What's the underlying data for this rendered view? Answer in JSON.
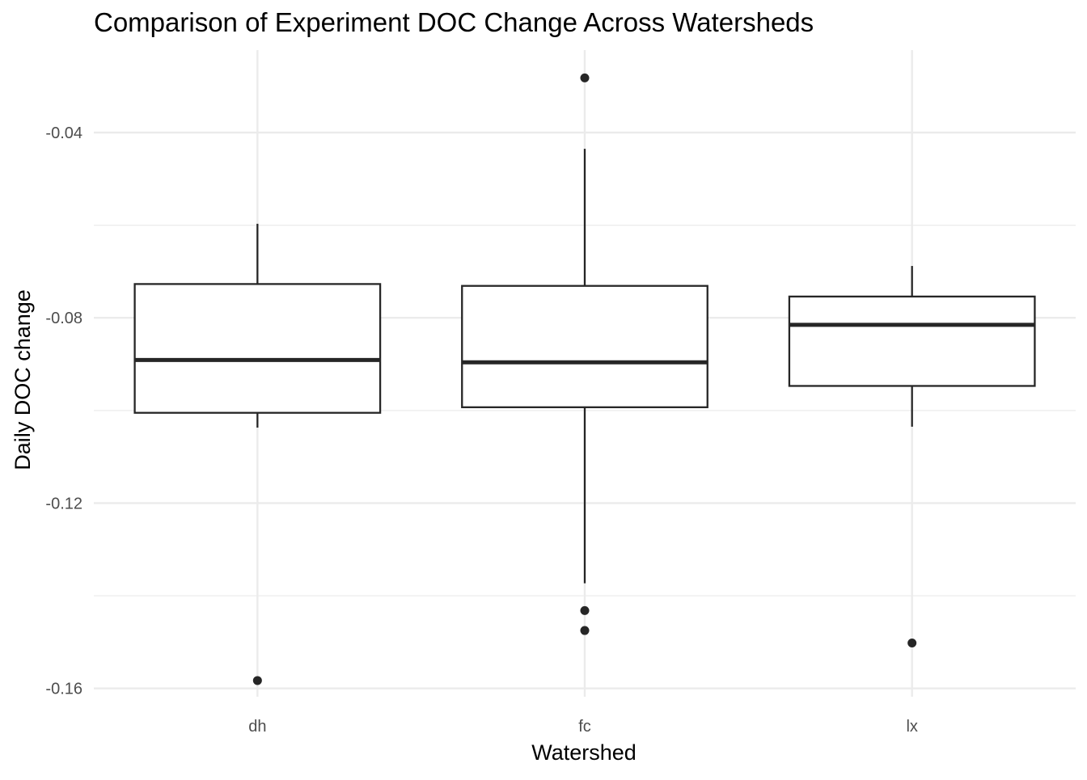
{
  "chart_data": {
    "type": "box",
    "title": "Comparison of Experiment DOC Change Across Watersheds",
    "xlabel": "Watershed",
    "ylabel": "Daily DOC change",
    "categories": [
      "dh",
      "fc",
      "lx"
    ],
    "ylim": [
      -0.1618,
      -0.0222
    ],
    "y_ticks": [
      -0.16,
      -0.12,
      -0.08,
      -0.04
    ],
    "y_tick_labels": [
      "-0.16",
      "-0.12",
      "-0.08",
      "-0.04"
    ],
    "grid": true,
    "legend": "none",
    "boxes": [
      {
        "category": "dh",
        "whisker_low": -0.1037,
        "q1": -0.1005,
        "median": -0.0891,
        "q3": -0.0727,
        "whisker_high": -0.0597,
        "outliers": [
          -0.1583
        ]
      },
      {
        "category": "fc",
        "whisker_low": -0.1373,
        "q1": -0.0993,
        "median": -0.0896,
        "q3": -0.0731,
        "whisker_high": -0.0435,
        "outliers": [
          -0.0282,
          -0.1432,
          -0.1475
        ]
      },
      {
        "category": "lx",
        "whisker_low": -0.1035,
        "q1": -0.0947,
        "median": -0.0815,
        "q3": -0.0754,
        "whisker_high": -0.0688,
        "outliers": [
          -0.1502
        ]
      }
    ]
  }
}
